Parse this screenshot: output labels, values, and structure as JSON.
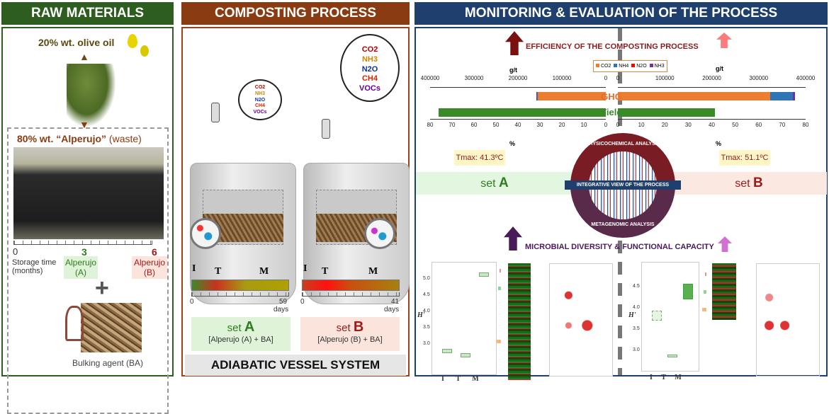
{
  "headers": {
    "raw": "RAW MATERIALS",
    "process": "COMPOSTING PROCESS",
    "monitoring": "MONITORING & EVALUATION OF THE PROCESS"
  },
  "colors": {
    "raw": "#2e5e1f",
    "process": "#8a3b12",
    "monitoring": "#1f3f6e",
    "setA": "#2e7d1f",
    "setB": "#9b1b1b"
  },
  "raw": {
    "olive_oil": "20% wt. olive oil",
    "alperujo_prefix": "80% wt. “Alperujo”",
    "alperujo_suffix": "(waste)",
    "storage_label": "Storage time (months)",
    "t0": "0",
    "t3": "3",
    "t6": "6",
    "alperujo_a": "Alperujo (A)",
    "alperujo_b": "Alperujo (B)",
    "plus": "+",
    "bulking": "Bulking agent (BA)"
  },
  "process": {
    "cloud_small": [
      "CO2",
      "NH3",
      "N2O",
      "CH4",
      "VOCs"
    ],
    "phases": [
      "I",
      "T",
      "M"
    ],
    "a_start": "0",
    "a_end": "59",
    "b_start": "0",
    "b_end": "41",
    "days": "days",
    "setA_word": "set",
    "setA_letter": "A",
    "setA_desc": "[Alperujo (A) + BA]",
    "setB_word": "set",
    "setB_letter": "B",
    "setB_desc": "[Alperujo (B) + BA]",
    "system": "ADIABATIC VESSEL SYSTEM"
  },
  "monitoring": {
    "efficiency": "EFFICIENCY OF THE COMPOSTING PROCESS",
    "legend": [
      "CO2",
      "NH4",
      "N2O",
      "NH3"
    ],
    "legend_colors": [
      "#ed7d31",
      "#2e75b6",
      "#ff0000",
      "#7030a0"
    ],
    "unit_top": "g/t",
    "unit_bottom": "%",
    "left_top_ticks": [
      "400000",
      "300000",
      "200000",
      "100000",
      "0"
    ],
    "right_top_ticks": [
      "0",
      "100000",
      "200000",
      "300000",
      "400000"
    ],
    "left_bottom_ticks": [
      "80",
      "70",
      "60",
      "50",
      "40",
      "30",
      "20",
      "10",
      "0"
    ],
    "right_bottom_ticks": [
      "0",
      "10",
      "20",
      "30",
      "40",
      "50",
      "60",
      "70",
      "80"
    ],
    "ghg_label": "GHG",
    "yield_label": "Yield",
    "setA_ghg": {
      "CO2": 155000,
      "NH4": 2500,
      "N2O": 300,
      "NH3": 500
    },
    "setB_ghg": {
      "CO2": 325000,
      "NH4": 48000,
      "N2O": 500,
      "NH3": 4000
    },
    "setA_yield": 76,
    "setB_yield": 41.5,
    "tmaxA": "Tmax: 41.3ºC",
    "tmaxB": "Tmax: 51.1ºC",
    "setA": "set A",
    "setA_word": "set",
    "setA_letter": "A",
    "setB_word": "set",
    "setB_letter": "B",
    "circle_top": "PHYSICOCHEMICAL ANALYSIS",
    "circle_mid": "INTEGRATIVE VIEW OF THE PROCESS",
    "circle_bottom": "METAGENOMIC ANALYSIS",
    "microbial": "MICROBIAL DIVERSITY & FUNCTIONAL CAPACITY",
    "h_label": "H'",
    "x_ticks": [
      "I",
      "T",
      "M"
    ],
    "clusters": [
      "I",
      "II",
      "III"
    ],
    "a_yticks": [
      "5.0",
      "4.5",
      "4.0",
      "3.5",
      "3.0"
    ],
    "b_yticks": [
      "4.5",
      "4.0",
      "3.5",
      "3.0"
    ]
  }
}
